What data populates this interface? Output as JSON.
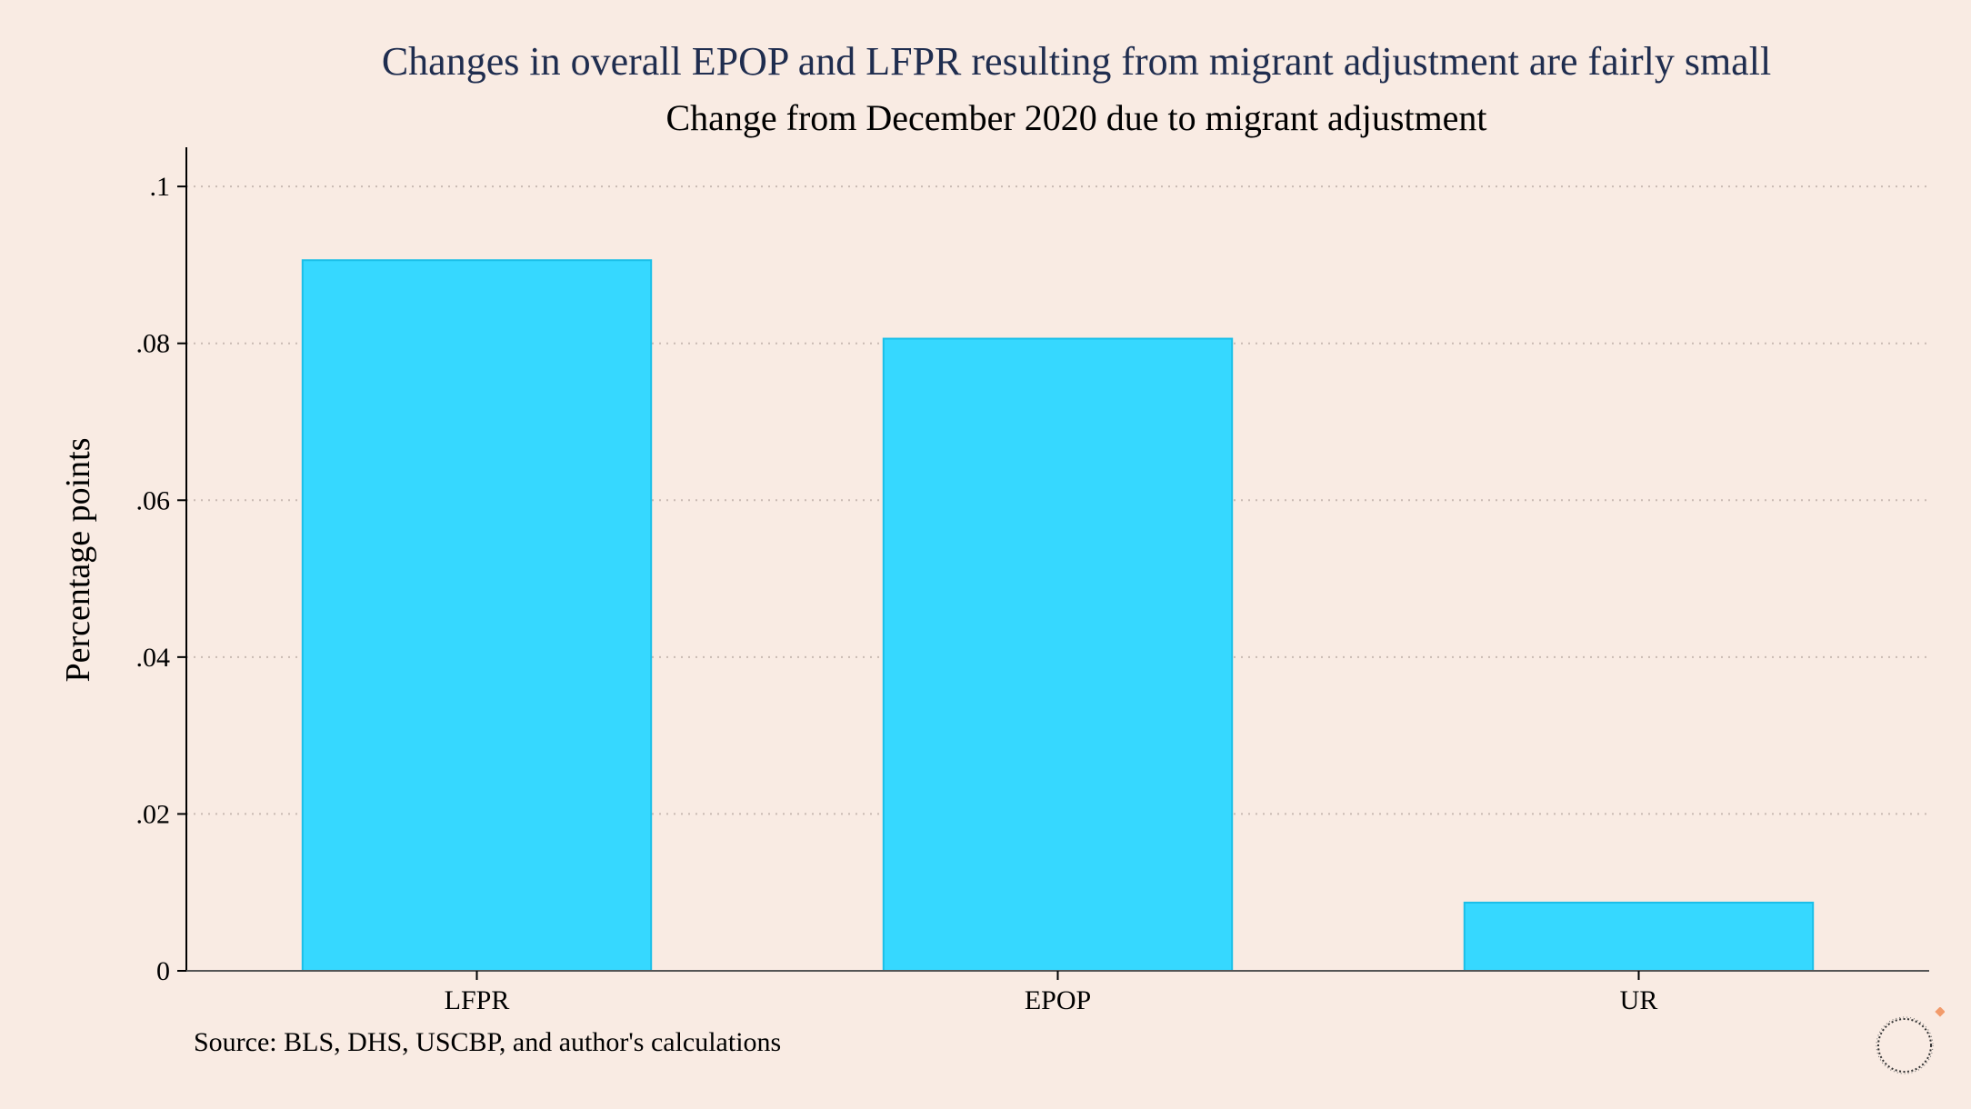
{
  "chart_data": {
    "type": "bar",
    "title": "Changes in overall EPOP and LFPR resulting from migrant adjustment are fairly small",
    "subtitle": "Change from December 2020 due to migrant adjustment",
    "xlabel": "",
    "ylabel": "Percentage points",
    "categories": [
      "LFPR",
      "EPOP",
      "UR"
    ],
    "values": [
      0.0906,
      0.0806,
      0.0087
    ],
    "ylim": [
      0,
      0.105
    ],
    "yticks": [
      0,
      0.02,
      0.04,
      0.06,
      0.08,
      0.1
    ],
    "ytick_labels": [
      "0",
      ".02",
      ".04",
      ".06",
      ".08",
      ".1"
    ],
    "grid": "horizontal-dotted",
    "legend": "none",
    "bar_color": "#36d8ff",
    "bar_edge_color": "#1bbfe8",
    "source": "Source: BLS, DHS, USCBP, and author's calculations"
  },
  "colors": {
    "background": "#f9ebe3",
    "title": "#1f2d4f",
    "axis": "#000000",
    "grid": "#c9bab3"
  },
  "logo": {
    "icon": "circular-logo-icon"
  }
}
